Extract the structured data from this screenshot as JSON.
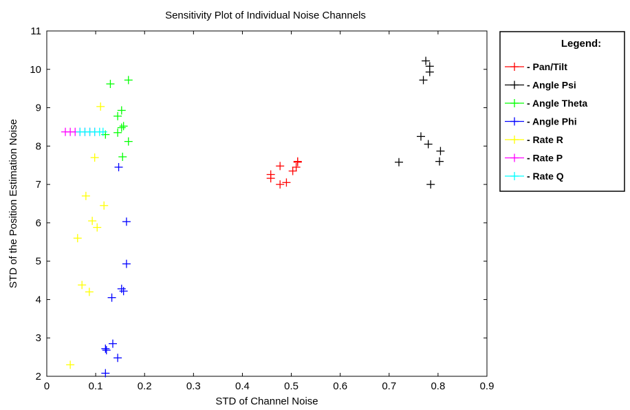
{
  "chart_data": {
    "type": "scatter",
    "title": "Sensitivity Plot of Individual Noise Channels",
    "xlabel": "STD of Channel Noise",
    "ylabel": "STD of the Position Estimation Noise",
    "xlim": [
      0,
      0.9
    ],
    "ylim": [
      2,
      11
    ],
    "x_ticks": [
      "0",
      "0.1",
      "0.2",
      "0.3",
      "0.4",
      "0.5",
      "0.6",
      "0.7",
      "0.8",
      "0.9"
    ],
    "y_ticks": [
      "2",
      "3",
      "4",
      "5",
      "6",
      "7",
      "8",
      "9",
      "10",
      "11"
    ],
    "grid": false,
    "legend": {
      "title": "Legend:",
      "placement": "outside-right"
    },
    "series": [
      {
        "name": "- Pan/Tilt",
        "color": "#ff0000",
        "points": [
          [
            0.458,
            7.26
          ],
          [
            0.458,
            7.16
          ],
          [
            0.477,
            7.48
          ],
          [
            0.477,
            7.0
          ],
          [
            0.49,
            7.05
          ],
          [
            0.503,
            7.35
          ],
          [
            0.51,
            7.45
          ],
          [
            0.513,
            7.6
          ],
          [
            0.513,
            7.58
          ]
        ]
      },
      {
        "name": "- Angle Psi",
        "color": "#000000",
        "points": [
          [
            0.72,
            7.58
          ],
          [
            0.765,
            8.25
          ],
          [
            0.77,
            9.72
          ],
          [
            0.775,
            10.22
          ],
          [
            0.78,
            8.05
          ],
          [
            0.783,
            10.08
          ],
          [
            0.783,
            9.93
          ],
          [
            0.785,
            7.0
          ],
          [
            0.803,
            7.6
          ],
          [
            0.805,
            7.87
          ]
        ]
      },
      {
        "name": "- Angle Theta",
        "color": "#00ff00",
        "points": [
          [
            0.12,
            8.3
          ],
          [
            0.13,
            9.62
          ],
          [
            0.145,
            8.78
          ],
          [
            0.145,
            8.35
          ],
          [
            0.153,
            8.48
          ],
          [
            0.153,
            8.93
          ],
          [
            0.155,
            7.72
          ],
          [
            0.157,
            8.52
          ],
          [
            0.167,
            9.72
          ],
          [
            0.167,
            8.12
          ]
        ]
      },
      {
        "name": "- Angle Phi",
        "color": "#0000ff",
        "points": [
          [
            0.12,
            2.08
          ],
          [
            0.12,
            2.72
          ],
          [
            0.122,
            2.68
          ],
          [
            0.133,
            4.05
          ],
          [
            0.135,
            2.85
          ],
          [
            0.145,
            2.48
          ],
          [
            0.147,
            7.45
          ],
          [
            0.153,
            4.28
          ],
          [
            0.157,
            4.22
          ],
          [
            0.163,
            6.03
          ],
          [
            0.163,
            4.93
          ]
        ]
      },
      {
        "name": "- Rate R",
        "color": "#ffff00",
        "points": [
          [
            0.048,
            2.3
          ],
          [
            0.063,
            5.6
          ],
          [
            0.072,
            4.38
          ],
          [
            0.08,
            6.7
          ],
          [
            0.087,
            4.2
          ],
          [
            0.093,
            6.05
          ],
          [
            0.098,
            7.7
          ],
          [
            0.103,
            5.88
          ],
          [
            0.11,
            9.03
          ],
          [
            0.117,
            6.45
          ]
        ]
      },
      {
        "name": "- Rate P",
        "color": "#ff00ff",
        "points": [
          [
            0.038,
            8.37
          ],
          [
            0.048,
            8.37
          ],
          [
            0.058,
            8.37
          ],
          [
            0.068,
            8.37
          ],
          [
            0.078,
            8.37
          ],
          [
            0.088,
            8.37
          ],
          [
            0.098,
            8.37
          ]
        ]
      },
      {
        "name": "- Rate Q",
        "color": "#00ffff",
        "points": [
          [
            0.068,
            8.37
          ],
          [
            0.078,
            8.37
          ],
          [
            0.088,
            8.37
          ],
          [
            0.098,
            8.37
          ],
          [
            0.108,
            8.37
          ],
          [
            0.115,
            8.37
          ]
        ]
      }
    ]
  }
}
